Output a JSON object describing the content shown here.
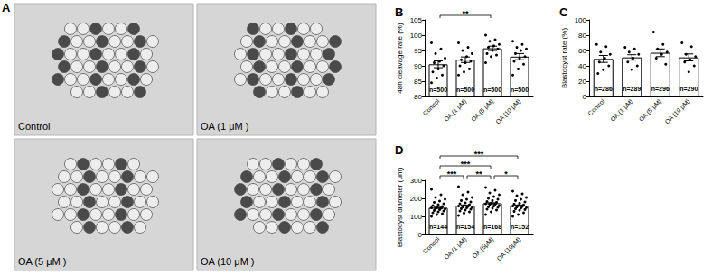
{
  "panel_a": {
    "label": "A",
    "images": [
      {
        "caption": "Control"
      },
      {
        "caption": "OA (1 μM )"
      },
      {
        "caption": "OA (5 μM )"
      },
      {
        "caption": "OA (10 μM )"
      }
    ]
  },
  "chart_data": [
    {
      "type": "bar",
      "title": "B",
      "y_label": "48h cleavage rate (%)",
      "categories": [
        "Control",
        "OA (1 μM)",
        "OA (5 μM)",
        "OA (10 μM)"
      ],
      "values": [
        90.5,
        92,
        95.7,
        93
      ],
      "errors": [
        1.1,
        0.9,
        0.7,
        1.0
      ],
      "points": [
        [
          97.5,
          95.5,
          94,
          92.5,
          91.5,
          91,
          90,
          89,
          88,
          87,
          86,
          84.5
        ],
        [
          97.5,
          96,
          95,
          94,
          93,
          92,
          91.5,
          91,
          90,
          89,
          88,
          87
        ],
        [
          100,
          98.5,
          98,
          97,
          96.5,
          96,
          95.5,
          95,
          94,
          93.5,
          93,
          91
        ],
        [
          98,
          97,
          96,
          95.5,
          95,
          94,
          93,
          92.5,
          91.5,
          90.5,
          89,
          87
        ]
      ],
      "n_labels": [
        "n=500",
        "n=500",
        "n=500",
        "n=500"
      ],
      "significance": [
        {
          "from": "Control",
          "to": "OA (5 μM)",
          "label": "**"
        }
      ],
      "color": "#ffffff",
      "ylim": [
        80,
        105
      ],
      "yticks": [
        80,
        85,
        90,
        95,
        100,
        105
      ],
      "grid": false
    },
    {
      "type": "bar",
      "title": "C",
      "y_label": "Blastocyst rate (%)",
      "categories": [
        "Control",
        "OA (1 μM)",
        "OA (5 μM)",
        "OA (10 μM)"
      ],
      "values": [
        49,
        51,
        57,
        51
      ],
      "errors": [
        4.5,
        3.5,
        5,
        4.5
      ],
      "points": [
        [
          68,
          65,
          58,
          55,
          50,
          45,
          40,
          35,
          30
        ],
        [
          64,
          62,
          58,
          55,
          50,
          45,
          40,
          35
        ],
        [
          84,
          68,
          62,
          58,
          55,
          50,
          42
        ],
        [
          70,
          65,
          55,
          52,
          48,
          45,
          40,
          32
        ]
      ],
      "n_labels": [
        "n=286",
        "n=289",
        "n=296",
        "n=290"
      ],
      "significance": [],
      "color": "#ffffff",
      "ylim": [
        0,
        100
      ],
      "yticks": [
        0,
        20,
        40,
        60,
        80,
        100
      ],
      "grid": false
    },
    {
      "type": "bar",
      "title": "D",
      "y_label": "Blastocyst diameter (μm)",
      "categories": [
        "Control",
        "OA (1 μM)",
        "OA (5μM)",
        "OA (10μM)"
      ],
      "values": [
        148,
        160,
        173,
        160
      ],
      "errors": [
        3,
        3,
        3,
        3
      ],
      "points": [
        [
          250,
          220,
          205,
          195,
          185,
          178,
          170,
          165,
          160,
          155,
          150,
          147,
          145,
          142,
          140,
          137,
          133,
          130,
          125,
          120,
          115,
          110,
          100
        ],
        [
          265,
          235,
          220,
          205,
          195,
          188,
          180,
          175,
          170,
          165,
          160,
          157,
          155,
          152,
          150,
          147,
          143,
          140,
          135,
          130,
          125,
          118,
          105
        ],
        [
          260,
          245,
          230,
          220,
          210,
          200,
          195,
          188,
          182,
          178,
          174,
          170,
          168,
          165,
          160,
          157,
          153,
          150,
          145,
          140,
          135,
          125,
          110
        ],
        [
          240,
          225,
          215,
          205,
          195,
          188,
          180,
          173,
          168,
          164,
          160,
          157,
          155,
          152,
          149,
          146,
          142,
          138,
          134,
          128,
          120,
          110,
          100
        ]
      ],
      "n_labels": [
        "n=144",
        "n=154",
        "n=168",
        "n=152"
      ],
      "significance": [
        {
          "from": "Control",
          "to": "OA (10μM)",
          "label": "***"
        },
        {
          "from": "Control",
          "to": "OA (5μM)",
          "label": "***"
        },
        {
          "from": "Control",
          "to": "OA (1 μM)",
          "label": "***"
        },
        {
          "from": "OA (1 μM)",
          "to": "OA (5μM)",
          "label": "**"
        },
        {
          "from": "OA (5μM)",
          "to": "OA (10μM)",
          "label": "*"
        }
      ],
      "color": "#ffffff",
      "ylim": [
        0,
        300
      ],
      "yticks": [
        0,
        100,
        200,
        300
      ],
      "grid": false
    }
  ]
}
